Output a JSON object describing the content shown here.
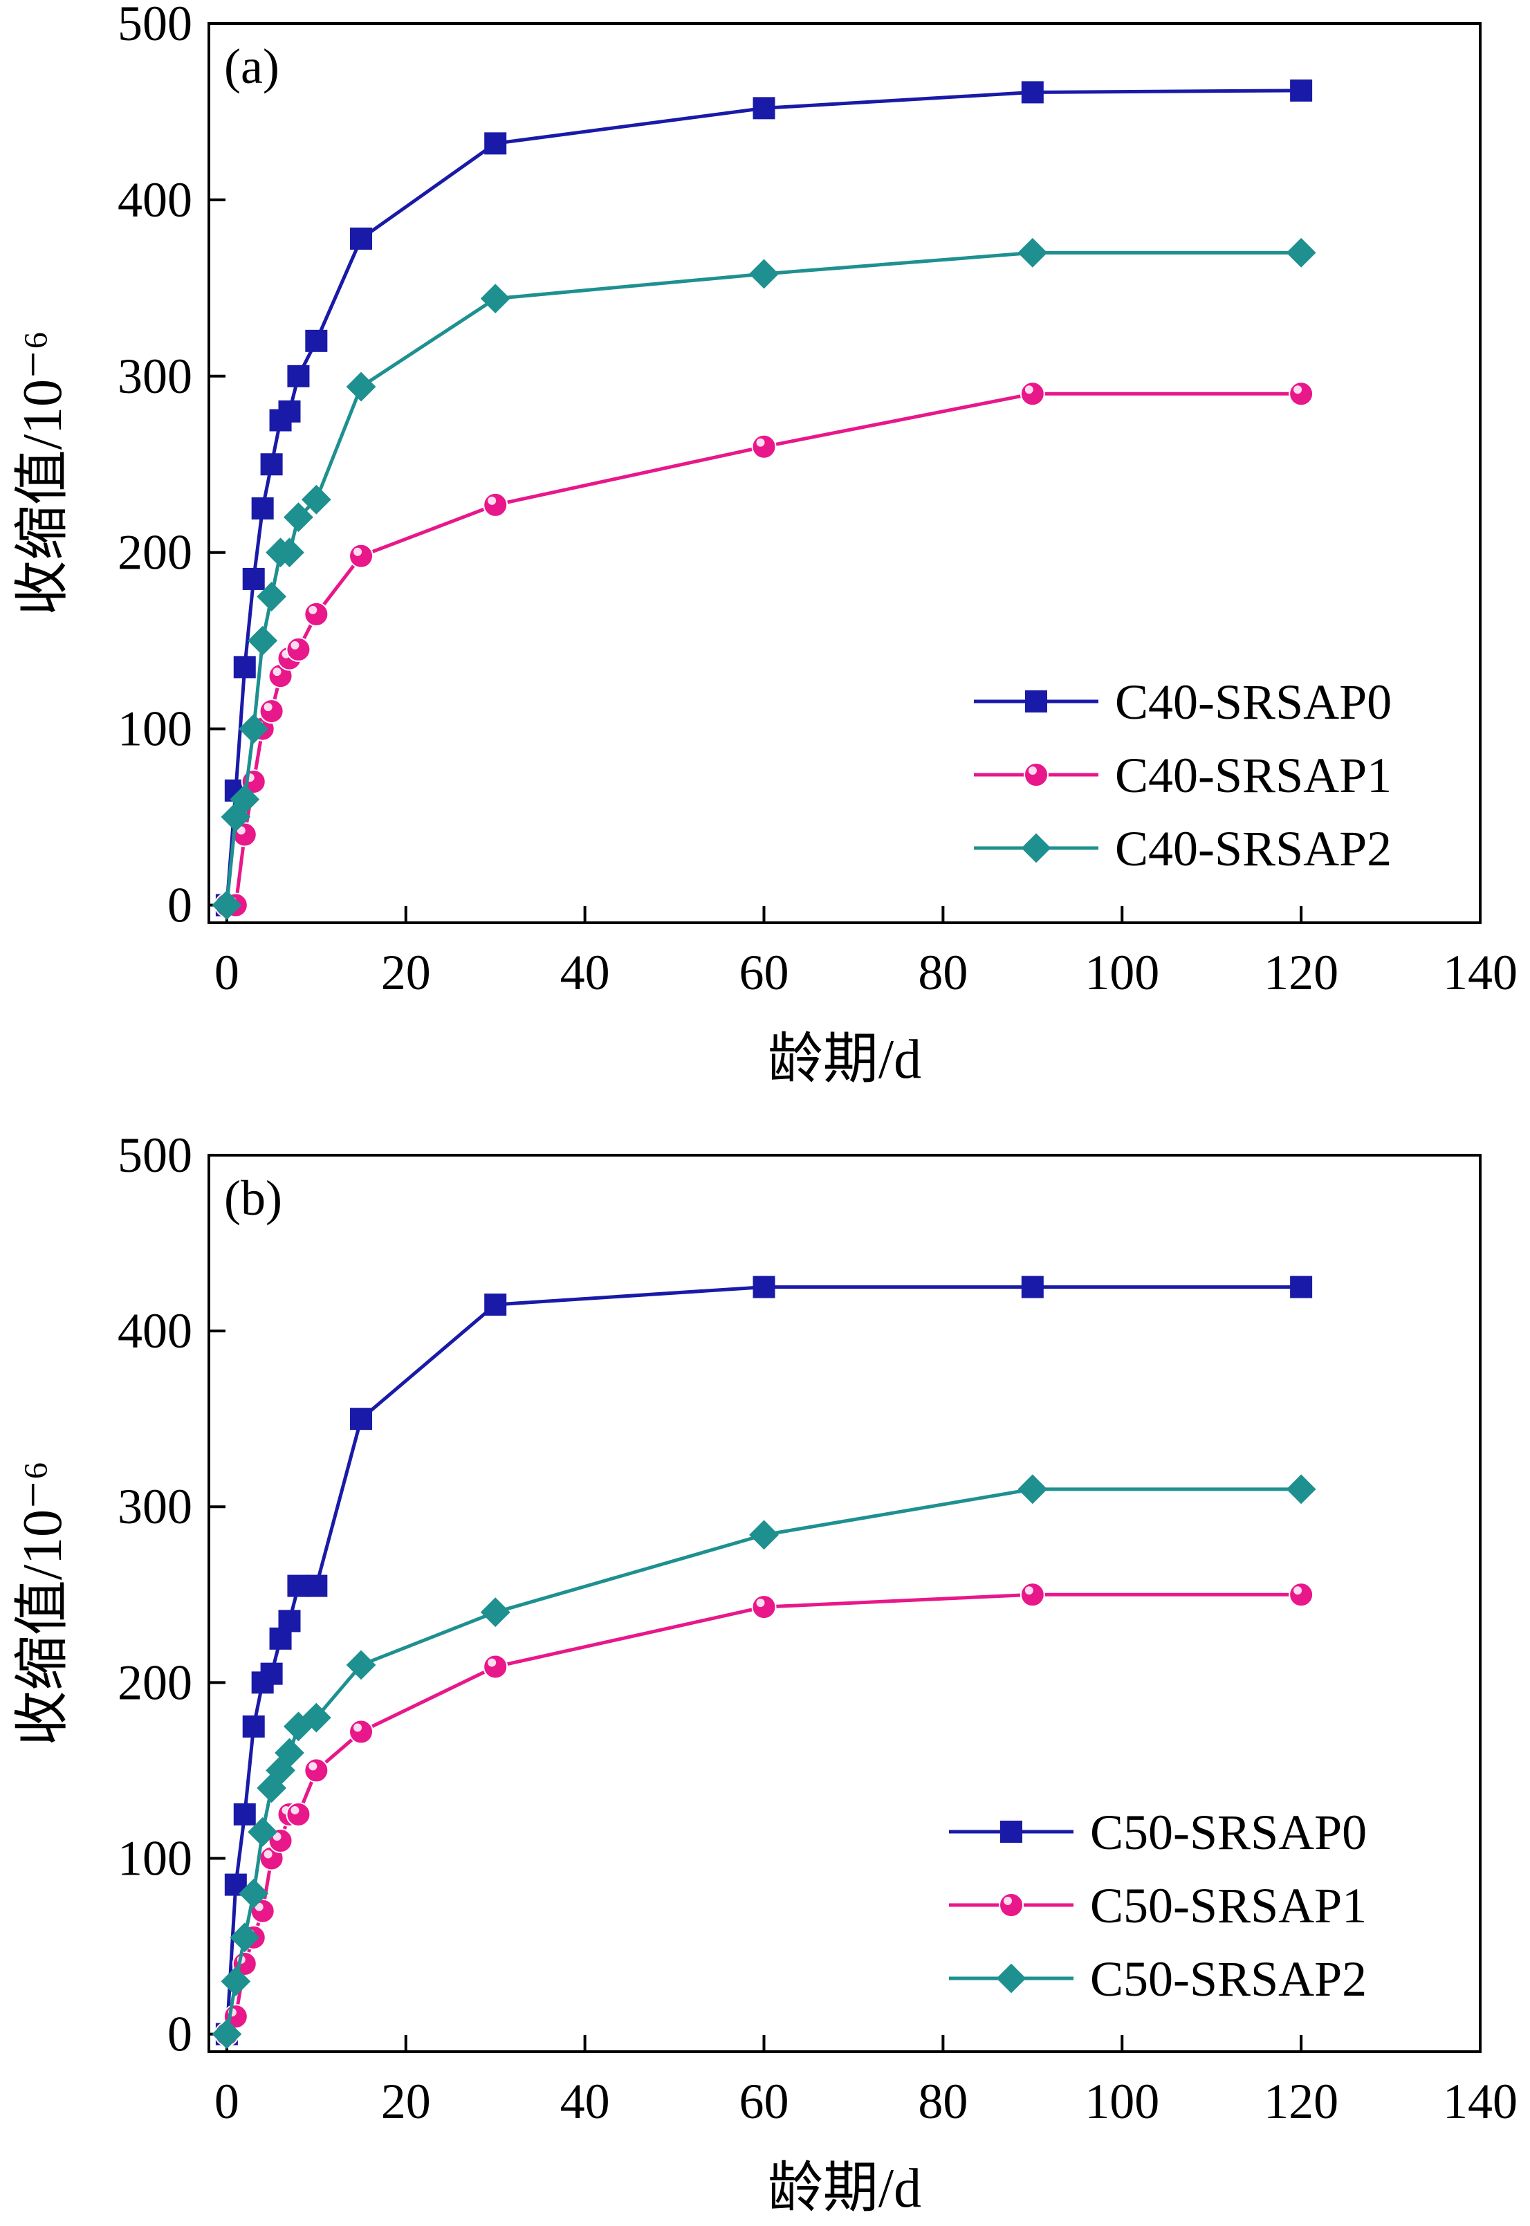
{
  "chart_data": [
    {
      "type": "line",
      "panel_label": "(a)",
      "xlabel": "龄期/d",
      "ylabel": "收缩值/10⁻⁶",
      "xlim": [
        -2,
        140
      ],
      "ylim": [
        -10,
        500
      ],
      "xticks": [
        "0",
        "20",
        "40",
        "60",
        "80",
        "100",
        "120",
        "140"
      ],
      "yticks": [
        "0",
        "100",
        "200",
        "300",
        "400",
        "500"
      ],
      "legend_position": "bottom-right",
      "grid": false,
      "series": [
        {
          "name": "C40-SRSAP0",
          "color": "#1a1aa8",
          "marker": "square",
          "x": [
            0,
            1,
            2,
            3,
            4,
            5,
            6,
            7,
            8,
            10,
            15,
            30,
            60,
            90,
            120
          ],
          "y": [
            0,
            65,
            135,
            185,
            225,
            250,
            275,
            280,
            300,
            320,
            378,
            432,
            452,
            461,
            462
          ]
        },
        {
          "name": "C40-SRSAP1",
          "color": "#e8178a",
          "marker": "circle",
          "x": [
            0,
            1,
            2,
            3,
            4,
            5,
            6,
            7,
            8,
            10,
            15,
            30,
            60,
            90,
            120
          ],
          "y": [
            0,
            0,
            40,
            70,
            100,
            110,
            130,
            140,
            145,
            165,
            198,
            227,
            260,
            290,
            290
          ]
        },
        {
          "name": "C40-SRSAP2",
          "color": "#1e9090",
          "marker": "diamond",
          "x": [
            0,
            1,
            2,
            3,
            4,
            5,
            6,
            7,
            8,
            10,
            15,
            30,
            60,
            90,
            120
          ],
          "y": [
            0,
            50,
            60,
            100,
            150,
            175,
            200,
            200,
            220,
            230,
            294,
            344,
            358,
            370,
            370
          ]
        }
      ]
    },
    {
      "type": "line",
      "panel_label": "(b)",
      "xlabel": "龄期/d",
      "ylabel": "收缩值/10⁻⁶",
      "xlim": [
        -2,
        140
      ],
      "ylim": [
        -10,
        500
      ],
      "xticks": [
        "0",
        "20",
        "40",
        "60",
        "80",
        "100",
        "120",
        "140"
      ],
      "yticks": [
        "0",
        "100",
        "200",
        "300",
        "400",
        "500"
      ],
      "legend_position": "bottom-right",
      "grid": false,
      "series": [
        {
          "name": "C50-SRSAP0",
          "color": "#1a1aa8",
          "marker": "square",
          "x": [
            0,
            1,
            2,
            3,
            4,
            5,
            6,
            7,
            8,
            10,
            15,
            30,
            60,
            90,
            120
          ],
          "y": [
            0,
            85,
            125,
            175,
            200,
            205,
            225,
            235,
            255,
            255,
            350,
            415,
            425,
            425,
            425
          ]
        },
        {
          "name": "C50-SRSAP1",
          "color": "#e8178a",
          "marker": "circle",
          "x": [
            0,
            1,
            2,
            3,
            4,
            5,
            6,
            7,
            8,
            10,
            15,
            30,
            60,
            90,
            120
          ],
          "y": [
            0,
            10,
            40,
            55,
            70,
            100,
            110,
            125,
            125,
            150,
            172,
            209,
            243,
            250,
            250
          ]
        },
        {
          "name": "C50-SRSAP2",
          "color": "#1e9090",
          "marker": "diamond",
          "x": [
            0,
            1,
            2,
            3,
            4,
            5,
            6,
            7,
            8,
            10,
            15,
            30,
            60,
            90,
            120
          ],
          "y": [
            0,
            30,
            55,
            80,
            115,
            140,
            150,
            160,
            175,
            180,
            210,
            240,
            284,
            310,
            310
          ]
        }
      ]
    }
  ]
}
